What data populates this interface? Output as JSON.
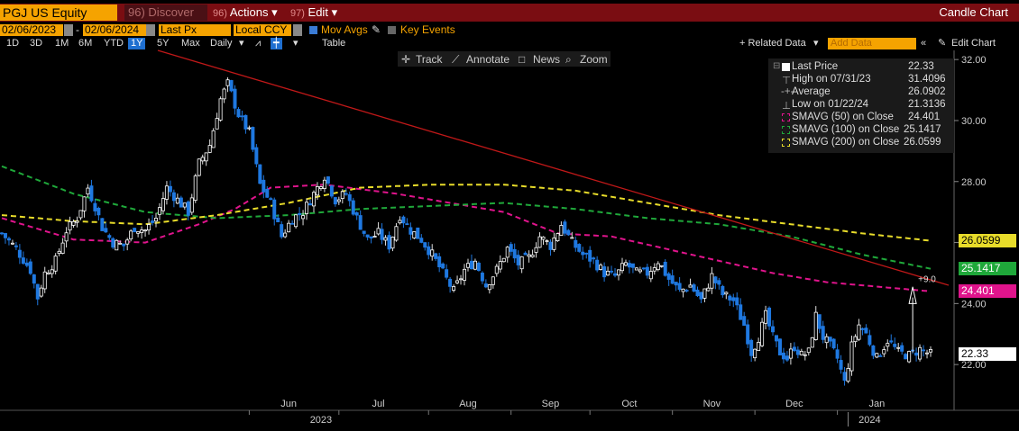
{
  "header": {
    "ticker": "PGJ US Equity",
    "discover": "Discover",
    "discover_num": "96)",
    "actions": "Actions",
    "actions_num": "96)",
    "edit": "Edit",
    "edit_num": "97)",
    "title": "Candle Chart"
  },
  "controls": {
    "start_date": "02/06/2023",
    "end_date": "02/06/2024",
    "field": "Last Px",
    "currency": "Local CCY",
    "mov_avgs": "Mov Avgs",
    "key_events": "Key Events"
  },
  "periods": [
    "1D",
    "3D",
    "1M",
    "6M",
    "YTD",
    "1Y",
    "5Y",
    "Max"
  ],
  "selected_period": "1Y",
  "frequency": "Daily",
  "table_label": "Table",
  "related_data": "+ Related Data",
  "add_data": "Add Data",
  "edit_chart": "Edit Chart",
  "tools": [
    "Track",
    "Annotate",
    "News",
    "Zoom"
  ],
  "legend": [
    {
      "label": "Last Price",
      "value": "22.33"
    },
    {
      "label": "High on 07/31/23",
      "value": "31.4096"
    },
    {
      "label": "Average",
      "value": "26.0902"
    },
    {
      "label": "Low on 01/22/24",
      "value": "21.3136"
    },
    {
      "label": "SMAVG (50)  on Close",
      "value": "24.401"
    },
    {
      "label": "SMAVG (100)  on Close",
      "value": "25.1417"
    },
    {
      "label": "SMAVG (200)  on Close",
      "value": "26.0599"
    }
  ],
  "colors": {
    "up_candle": "#ffffff",
    "down_candle": "#1f78e0",
    "sma50": "#e0148c",
    "sma100": "#1fa83a",
    "sma200": "#e8dc2a",
    "trendline": "#c01818",
    "accent": "#f5a300"
  },
  "annotation": "+9.0",
  "chart_data": {
    "type": "candlestick",
    "ylim": [
      20.5,
      32.3
    ],
    "y_ticks": [
      22,
      24,
      26,
      28,
      30,
      32
    ],
    "y_tick_labels": [
      "22.00",
      "24.00",
      "26.00",
      "28.00",
      "30.00",
      "32.00"
    ],
    "x_month_labels": [
      "Jun",
      "Jul",
      "Aug",
      "Sep",
      "Oct",
      "Nov",
      "Dec",
      "Jan"
    ],
    "year_labels": [
      "2023",
      "2024"
    ],
    "n_days": 260,
    "month_day_index": [
      80,
      105,
      130,
      153,
      175,
      198,
      221,
      244
    ],
    "year_day_index": [
      89,
      242
    ],
    "year_sep_day_index": [
      236
    ],
    "close_keypoints": [
      [
        0,
        26.3
      ],
      [
        4,
        25.8
      ],
      [
        8,
        25.1
      ],
      [
        10,
        24.2
      ],
      [
        12,
        25.0
      ],
      [
        15,
        25.4
      ],
      [
        18,
        26.4
      ],
      [
        21,
        26.8
      ],
      [
        24,
        27.8
      ],
      [
        26,
        27.2
      ],
      [
        28,
        26.5
      ],
      [
        31,
        26.0
      ],
      [
        34,
        25.9
      ],
      [
        37,
        26.5
      ],
      [
        40,
        26.4
      ],
      [
        43,
        26.8
      ],
      [
        46,
        27.8
      ],
      [
        49,
        27.4
      ],
      [
        52,
        27.0
      ],
      [
        55,
        28.6
      ],
      [
        58,
        29.2
      ],
      [
        61,
        30.7
      ],
      [
        63,
        31.2
      ],
      [
        66,
        30.2
      ],
      [
        69,
        29.6
      ],
      [
        72,
        27.9
      ],
      [
        75,
        27.3
      ],
      [
        78,
        26.2
      ],
      [
        81,
        26.8
      ],
      [
        84,
        27.0
      ],
      [
        87,
        27.6
      ],
      [
        90,
        28.2
      ],
      [
        93,
        27.4
      ],
      [
        96,
        27.6
      ],
      [
        99,
        26.8
      ],
      [
        102,
        26.1
      ],
      [
        105,
        26.3
      ],
      [
        108,
        25.9
      ],
      [
        111,
        26.9
      ],
      [
        114,
        26.4
      ],
      [
        117,
        26.1
      ],
      [
        120,
        25.6
      ],
      [
        123,
        25.0
      ],
      [
        126,
        24.4
      ],
      [
        129,
        25.1
      ],
      [
        132,
        25.4
      ],
      [
        135,
        24.6
      ],
      [
        138,
        25.1
      ],
      [
        141,
        25.8
      ],
      [
        144,
        25.3
      ],
      [
        147,
        25.5
      ],
      [
        150,
        26.2
      ],
      [
        153,
        25.9
      ],
      [
        156,
        26.6
      ],
      [
        159,
        26.0
      ],
      [
        162,
        25.6
      ],
      [
        165,
        25.4
      ],
      [
        168,
        25.0
      ],
      [
        171,
        24.9
      ],
      [
        174,
        25.3
      ],
      [
        177,
        25.0
      ],
      [
        180,
        25.0
      ],
      [
        183,
        25.4
      ],
      [
        186,
        24.8
      ],
      [
        189,
        24.4
      ],
      [
        192,
        24.6
      ],
      [
        195,
        24.1
      ],
      [
        198,
        24.9
      ],
      [
        201,
        24.3
      ],
      [
        204,
        24.1
      ],
      [
        207,
        23.3
      ],
      [
        209,
        22.4
      ],
      [
        211,
        22.9
      ],
      [
        213,
        23.6
      ],
      [
        215,
        22.9
      ],
      [
        217,
        22.4
      ],
      [
        219,
        22.2
      ],
      [
        221,
        22.6
      ],
      [
        223,
        22.3
      ],
      [
        225,
        22.4
      ],
      [
        227,
        23.6
      ],
      [
        229,
        22.9
      ],
      [
        231,
        22.6
      ],
      [
        233,
        22.2
      ],
      [
        235,
        21.4
      ],
      [
        237,
        22.6
      ],
      [
        239,
        23.3
      ],
      [
        241,
        23.0
      ],
      [
        244,
        22.2
      ],
      [
        247,
        22.8
      ],
      [
        250,
        22.4
      ],
      [
        253,
        22.3
      ],
      [
        256,
        22.5
      ],
      [
        259,
        22.33
      ]
    ],
    "series": [
      {
        "name": "SMAVG (50)",
        "last": 24.401,
        "keypoints": [
          [
            0,
            26.8
          ],
          [
            20,
            26.1
          ],
          [
            40,
            26.0
          ],
          [
            55,
            26.6
          ],
          [
            65,
            27.1
          ],
          [
            75,
            27.8
          ],
          [
            90,
            27.9
          ],
          [
            110,
            27.6
          ],
          [
            125,
            27.3
          ],
          [
            140,
            27.0
          ],
          [
            155,
            26.3
          ],
          [
            170,
            26.2
          ],
          [
            185,
            25.8
          ],
          [
            200,
            25.4
          ],
          [
            215,
            25.0
          ],
          [
            230,
            24.7
          ],
          [
            259,
            24.401
          ]
        ]
      },
      {
        "name": "SMAVG (100)",
        "last": 25.1417,
        "keypoints": [
          [
            0,
            28.5
          ],
          [
            20,
            27.6
          ],
          [
            40,
            27.0
          ],
          [
            60,
            26.8
          ],
          [
            80,
            26.9
          ],
          [
            100,
            27.1
          ],
          [
            120,
            27.2
          ],
          [
            140,
            27.3
          ],
          [
            160,
            27.1
          ],
          [
            180,
            26.8
          ],
          [
            200,
            26.6
          ],
          [
            220,
            26.2
          ],
          [
            240,
            25.6
          ],
          [
            259,
            25.1417
          ]
        ]
      },
      {
        "name": "SMAVG (200)",
        "last": 26.0599,
        "keypoints": [
          [
            0,
            26.9
          ],
          [
            20,
            26.7
          ],
          [
            40,
            26.6
          ],
          [
            60,
            26.9
          ],
          [
            80,
            27.3
          ],
          [
            100,
            27.8
          ],
          [
            120,
            27.9
          ],
          [
            140,
            27.9
          ],
          [
            160,
            27.7
          ],
          [
            180,
            27.3
          ],
          [
            200,
            26.9
          ],
          [
            220,
            26.6
          ],
          [
            240,
            26.3
          ],
          [
            259,
            26.0599
          ]
        ]
      }
    ]
  }
}
